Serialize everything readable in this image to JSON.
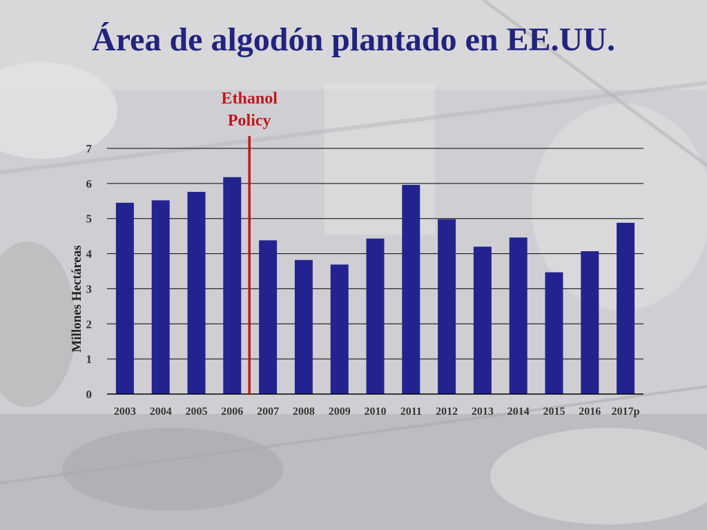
{
  "slide": {
    "title": "Área de algodón plantado en EE.UU."
  },
  "chart_data": {
    "type": "bar",
    "title": "Área de algodón plantado en EE.UU.",
    "xlabel": "",
    "ylabel": "Millones Hectáreas",
    "categories": [
      "2003",
      "2004",
      "2005",
      "2006",
      "2007",
      "2008",
      "2009",
      "2010",
      "2011",
      "2012",
      "2013",
      "2014",
      "2015",
      "2016",
      "2017p"
    ],
    "values": [
      5.45,
      5.52,
      5.76,
      6.18,
      4.38,
      3.82,
      3.69,
      4.43,
      5.96,
      4.98,
      4.2,
      4.46,
      3.47,
      4.07,
      4.88
    ],
    "ylim": [
      0,
      7
    ],
    "yticks": [
      0,
      1,
      2,
      3,
      4,
      5,
      6,
      7
    ],
    "grid": true,
    "bar_color": "#23238f",
    "annotation": {
      "lines": [
        "Ethanol",
        "Policy"
      ],
      "after_category": "2006",
      "color": "#c0181e"
    }
  }
}
